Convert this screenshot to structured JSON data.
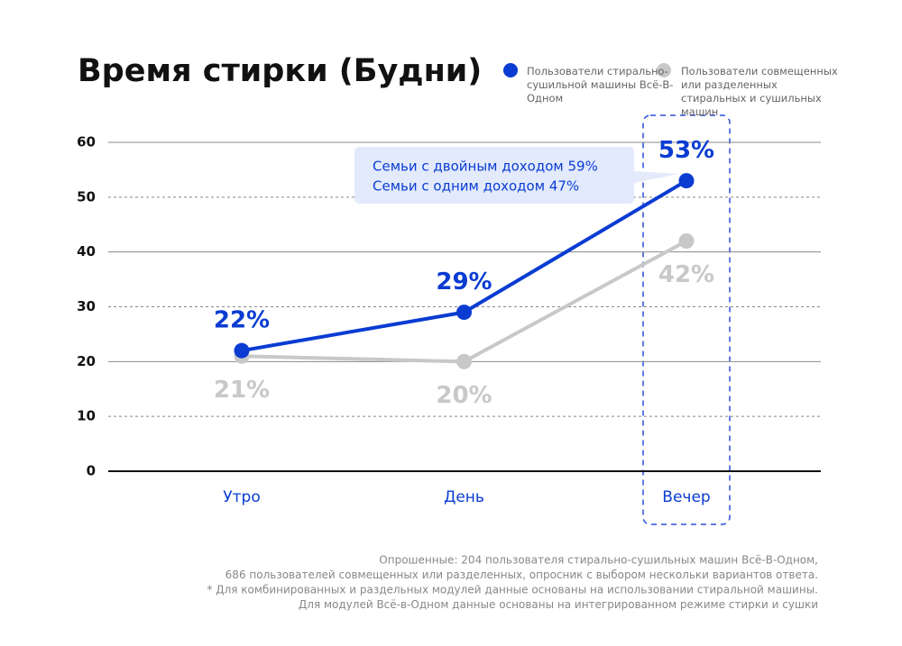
{
  "chart_data": {
    "type": "line",
    "title": "Время стирки (Будни)",
    "categories": [
      "Утро",
      "День",
      "Вечер"
    ],
    "series": [
      {
        "name": "Пользователи стирально-сушильной машины Всё-В-Одном",
        "color": "#0a3cd2",
        "values": [
          22,
          29,
          53
        ],
        "value_labels": [
          "22%",
          "29%",
          "53%"
        ]
      },
      {
        "name": "Пользователи совмещенных или разделенных стиральных и сушильных машин",
        "color": "#c8c8c8",
        "values": [
          21,
          20,
          42
        ],
        "value_labels": [
          "21%",
          "20%",
          "42%"
        ]
      }
    ],
    "ylim": [
      0,
      60
    ],
    "yticks": [
      0,
      10,
      20,
      30,
      40,
      50,
      60
    ],
    "grid": true,
    "annotation": [
      "Семьи с двойным доходом 59%",
      "Семьи с одним доходом 47%"
    ],
    "notes": [
      "Опрошенные: 204 пользователя стирально-сушильных машин Всё-В-Одном,",
      "686 пользователей совмещенных или разделенных, опросник с выбором нескольки вариантов ответа.",
      "* Для комбинированных и раздельных модулей данные основаны на использовании стиральной машины.",
      "Для модулей Всё-в-Одном данные основаны на интегрированном режиме стирки и сушки"
    ]
  }
}
